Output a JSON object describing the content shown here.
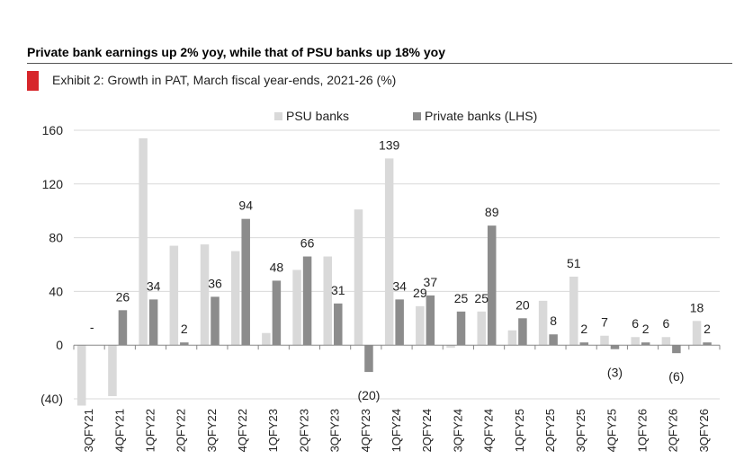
{
  "header": {
    "headline": "Private bank earnings up 2% yoy, while that of PSU banks up 18% yoy",
    "exhibit_title": "Exhibit 2: Growth in PAT, March fiscal year-ends, 2021-26 (%)"
  },
  "colors": {
    "accent": "#d7262b",
    "psu": "#d9d9d9",
    "private": "#8c8c8c",
    "grid": "#d9d9d9"
  },
  "chart_data": {
    "type": "bar",
    "title": "Exhibit 2: Growth in PAT, March fiscal year-ends, 2021-26 (%)",
    "xlabel": "",
    "ylabel": "",
    "ylim": [
      -40,
      160
    ],
    "yticks": [
      -40,
      0,
      40,
      80,
      120,
      160
    ],
    "ytick_labels": [
      "(40)",
      "0",
      "40",
      "80",
      "120",
      "160"
    ],
    "grid": true,
    "legend_position": "top",
    "categories": [
      "3QFY21",
      "4QFY21",
      "1QFY22",
      "2QFY22",
      "3QFY22",
      "4QFY22",
      "1QFY23",
      "2QFY23",
      "3QFY23",
      "4QFY23",
      "1QFY24",
      "2QFY24",
      "3QFY24",
      "4QFY24",
      "1QFY25",
      "2QFY25",
      "3QFY25",
      "4QFY25",
      "1QFY26",
      "2QFY26",
      "3QFY26"
    ],
    "series": [
      {
        "name": "PSU banks",
        "values": [
          -45,
          -38,
          154,
          74,
          75,
          70,
          9,
          56,
          66,
          101,
          139,
          29,
          -2,
          25,
          11,
          33,
          51,
          7,
          6,
          6,
          18
        ],
        "labels": [
          "",
          "",
          "",
          "",
          "",
          "",
          "",
          "",
          "",
          "",
          "139",
          "29",
          "",
          "25",
          "",
          "",
          "51",
          "7",
          "6",
          "6",
          "18"
        ]
      },
      {
        "name": "Private banks (LHS)",
        "values": [
          0,
          26,
          34,
          2,
          36,
          94,
          48,
          66,
          31,
          -20,
          34,
          37,
          25,
          89,
          20,
          8,
          2,
          -3,
          2,
          -6,
          2
        ],
        "labels": [
          "-",
          "26",
          "34",
          "2",
          "36",
          "94",
          "48",
          "66",
          "31",
          "(20)",
          "34",
          "37",
          "25",
          "89",
          "20",
          "8",
          "2",
          "(3)",
          "2",
          "(6)",
          "2"
        ]
      }
    ]
  }
}
